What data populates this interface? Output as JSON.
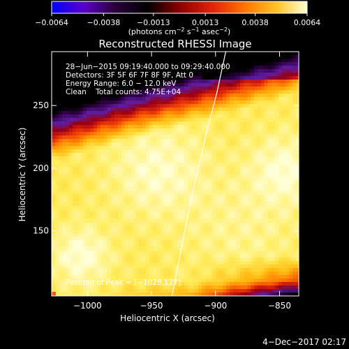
{
  "chart_data": {
    "type": "heatmap",
    "title": "Reconstructed RHESSI Image",
    "xlabel": "Heliocentric X (arcsec)",
    "ylabel": "Heliocentric Y (arcsec)",
    "xlim": [
      -1028,
      -835
    ],
    "ylim": [
      98,
      293
    ],
    "x_ticks": [
      -1000,
      -950,
      -900,
      -850
    ],
    "x_tick_labels": [
      "−1000",
      "−950",
      "−900",
      "−850"
    ],
    "y_ticks": [
      150,
      200,
      250
    ],
    "y_tick_labels": [
      "150",
      "200",
      "250"
    ],
    "colorbar": {
      "min": -0.0064,
      "max": 0.0064,
      "ticks": [
        -0.0064,
        -0.0038,
        -0.0013,
        0.0013,
        0.0038,
        0.0064
      ],
      "tick_labels": [
        "−0.0064",
        "−0.0038",
        "−0.0013",
        "0.0013",
        "0.0038",
        "0.0064"
      ],
      "unit_main": "(photons cm",
      "unit_sup1": "−2",
      "unit_mid": " s",
      "unit_sup2": "−1",
      "unit_end": " asec",
      "unit_sup3": "−2",
      "unit_close": ")",
      "colors": [
        "#0000ff",
        "#5a00c8",
        "#2a003a",
        "#000000",
        "#8b0000",
        "#e0200a",
        "#ff7000",
        "#ffc020",
        "#ffffd0"
      ]
    },
    "annotations": [
      "28−Jun−2015 09:19:40.000 to 09:29:40.000",
      "Detectors: 3F 5F 6F 7F 8F 9F, Att 0",
      "Energy Range: 6.0 − 12.0 keV",
      "Clean    Total counts: 4.75E+04"
    ],
    "peak_label": "Position of Peak = [−1028,127]",
    "limb_curve": [
      [
        -934,
        98
      ],
      [
        -926,
        140
      ],
      [
        -918,
        180
      ],
      [
        -909,
        220
      ],
      [
        -899,
        260
      ],
      [
        -892,
        293
      ]
    ],
    "footer": "4−Dec−2017 02:17"
  }
}
